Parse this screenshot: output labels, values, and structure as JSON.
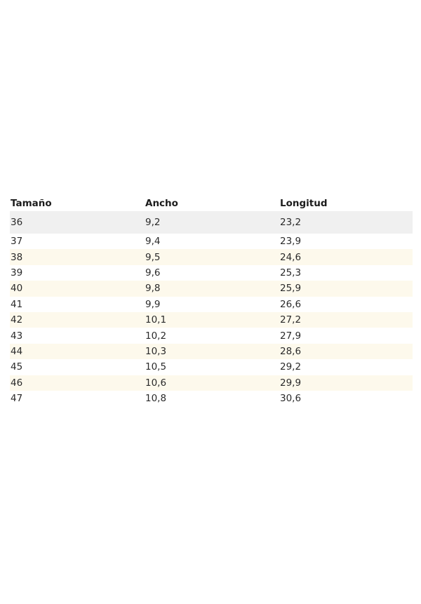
{
  "table": {
    "headers": [
      "Tamaño",
      "Ancho",
      "Longitud"
    ],
    "rows": [
      [
        "36",
        "9,2",
        "23,2"
      ],
      [
        "37",
        "9,4",
        "23,9"
      ],
      [
        "38",
        "9,5",
        "24,6"
      ],
      [
        "39",
        "9,6",
        "25,3"
      ],
      [
        "40",
        "9,8",
        "25,9"
      ],
      [
        "41",
        "9,9",
        "26,6"
      ],
      [
        "42",
        "10,1",
        "27,2"
      ],
      [
        "43",
        "10,2",
        "27,9"
      ],
      [
        "44",
        "10,3",
        "28,6"
      ],
      [
        "45",
        "10,5",
        "29,2"
      ],
      [
        "46",
        "10,6",
        "29,9"
      ],
      [
        "47",
        "10,8",
        "30,6"
      ]
    ]
  },
  "colors": {
    "first_row": "#f0f0f0",
    "stripe": "#fdf9ec"
  }
}
